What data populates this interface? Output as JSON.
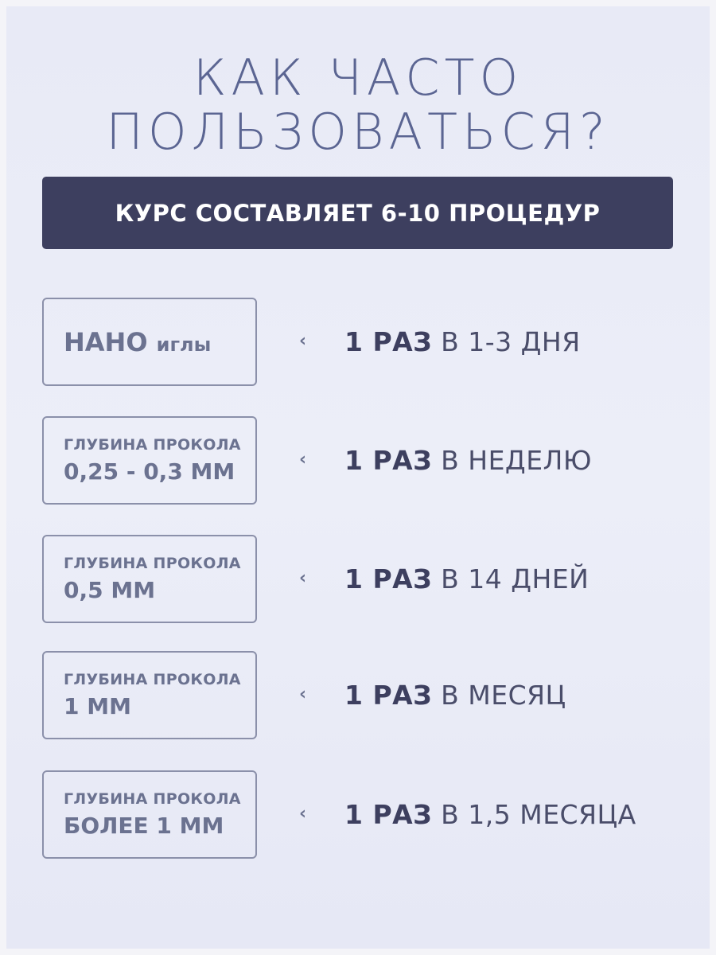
{
  "title": {
    "line1": "КАК ЧАСТО",
    "line2": "ПОЛЬЗОВАТЬСЯ?"
  },
  "banner": "КУРС СОСТАВЛЯЕТ 6-10 ПРОЦЕДУР",
  "colors": {
    "title": "#5b6592",
    "banner_bg": "#3d3f5f",
    "box_text": "#6b7290",
    "background": "#e9ebf7"
  },
  "rows": [
    {
      "label_bold": "НАНО",
      "label_rest": "иглы",
      "chevron": "‹",
      "freq_bold": "1 РАЗ",
      "freq_rest": "В 1-3 ДНЯ"
    },
    {
      "label_small": "ГЛУБИНА ПРОКОЛА",
      "label_big": "0,25 - 0,3 ММ",
      "chevron": "‹",
      "freq_bold": "1 РАЗ",
      "freq_rest": "В НЕДЕЛЮ"
    },
    {
      "label_small": "ГЛУБИНА ПРОКОЛА",
      "label_big": "0,5 ММ",
      "chevron": "‹",
      "freq_bold": "1 РАЗ",
      "freq_rest": "В 14 ДНЕЙ"
    },
    {
      "label_small": "ГЛУБИНА ПРОКОЛА",
      "label_big": "1 ММ",
      "chevron": "‹",
      "freq_bold": "1 РАЗ",
      "freq_rest": "В МЕСЯЦ"
    },
    {
      "label_small": "ГЛУБИНА ПРОКОЛА",
      "label_big": "БОЛЕЕ 1 ММ",
      "chevron": "‹",
      "freq_bold": "1 РАЗ",
      "freq_rest": "В 1,5 МЕСЯЦА"
    }
  ]
}
